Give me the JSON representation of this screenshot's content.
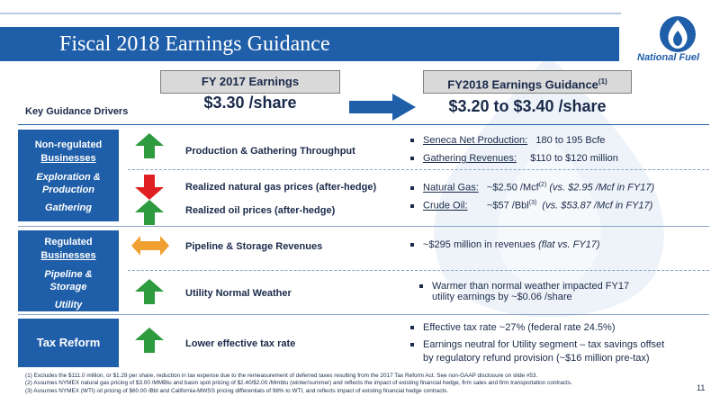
{
  "title": "Fiscal 2018 Earnings Guidance",
  "logo": {
    "text": "National Fuel"
  },
  "header": {
    "fy17_label": "FY 2017 Earnings",
    "fy17_value": "$3.30 /share",
    "fy18_label": "FY2018 Earnings Guidance",
    "fy18_label_sup": "(1)",
    "fy18_value": "$3.20 to $3.40 /share",
    "drivers_label": "Key Guidance Drivers"
  },
  "categories": {
    "nonreg_title1": "Non-regulated",
    "nonreg_title2": "Businesses",
    "nonreg_sub1": "Exploration &",
    "nonreg_sub2": "Production",
    "nonreg_sub3": "Gathering",
    "reg_title1": "Regulated",
    "reg_title2": "Businesses",
    "reg_sub1": "Pipeline &",
    "reg_sub2": "Storage",
    "reg_sub3": "Utility",
    "tax": "Tax Reform"
  },
  "drivers": {
    "production": "Production & Gathering Throughput",
    "gas_prices": "Realized natural gas prices (after-hedge)",
    "oil_prices": "Realized oil prices (after-hedge)",
    "pipeline": "Pipeline & Storage Revenues",
    "weather": "Utility Normal Weather",
    "tax_rate": "Lower effective tax rate"
  },
  "icons": {
    "production": "arrow-up-green",
    "gas_prices": "arrow-down-red",
    "oil_prices": "arrow-up-green",
    "pipeline": "arrow-left-right-orange",
    "weather": "arrow-up-green",
    "tax_rate": "arrow-up-green"
  },
  "colors": {
    "brand_blue": "#1f5ea8",
    "up_green": "#2e9b3e",
    "down_red": "#e02020",
    "neutral_orange": "#f0a030"
  },
  "guidance": {
    "seneca_label": "Seneca Net Production:",
    "seneca_value": "180 to 195 Bcfe",
    "gathering_label": "Gathering Revenues:",
    "gathering_value": "$110 to $120 million",
    "gas_label": "Natural Gas:",
    "gas_value": "~$2.50 /Mcf",
    "gas_sup": "(2)",
    "gas_compare": "(vs. $2.95 /Mcf in FY17)",
    "oil_label": "Crude Oil:",
    "oil_value": "~$57 /Bbl",
    "oil_sup": "(3)",
    "oil_compare": "(vs. $53.87 /Mcf in FY17)",
    "pipeline_text": "~$295 million in revenues",
    "pipeline_compare": "(flat vs. FY17)",
    "weather_line1": "Warmer than normal weather impacted FY17",
    "weather_line2": "utility earnings by ~$0.06 /share",
    "tax_line1": "Effective tax rate ~27% (federal rate 24.5%)",
    "tax_line2": "Earnings neutral for Utility segment – tax savings offset",
    "tax_line3": "by regulatory refund provision (~$16 million pre-tax)"
  },
  "footnotes": [
    "(1)   Excludes the $111.0 million, or $1.29 per share, reduction in tax expense due to the remeasurement of deferred taxes resulting from the 2017 Tax Reform Act.  See non-GAAP disclosure on slide #53.",
    "(2)   Assumes NYMEX natural gas pricing of $3.00 /MMBtu and basin spot pricing of $2.40/$2.00 /Mmbtu (winter/summer) and reflects the impact of existing financial hedge, firm sales and firm transportation contracts.",
    "(3)   Assumes NYMEX (WTI) oil pricing of $60.00 /Bbl and California-MWSS pricing differentials of 98% to WTI, and reflects impact of existing financial hedge contracts."
  ],
  "page_number": "11"
}
